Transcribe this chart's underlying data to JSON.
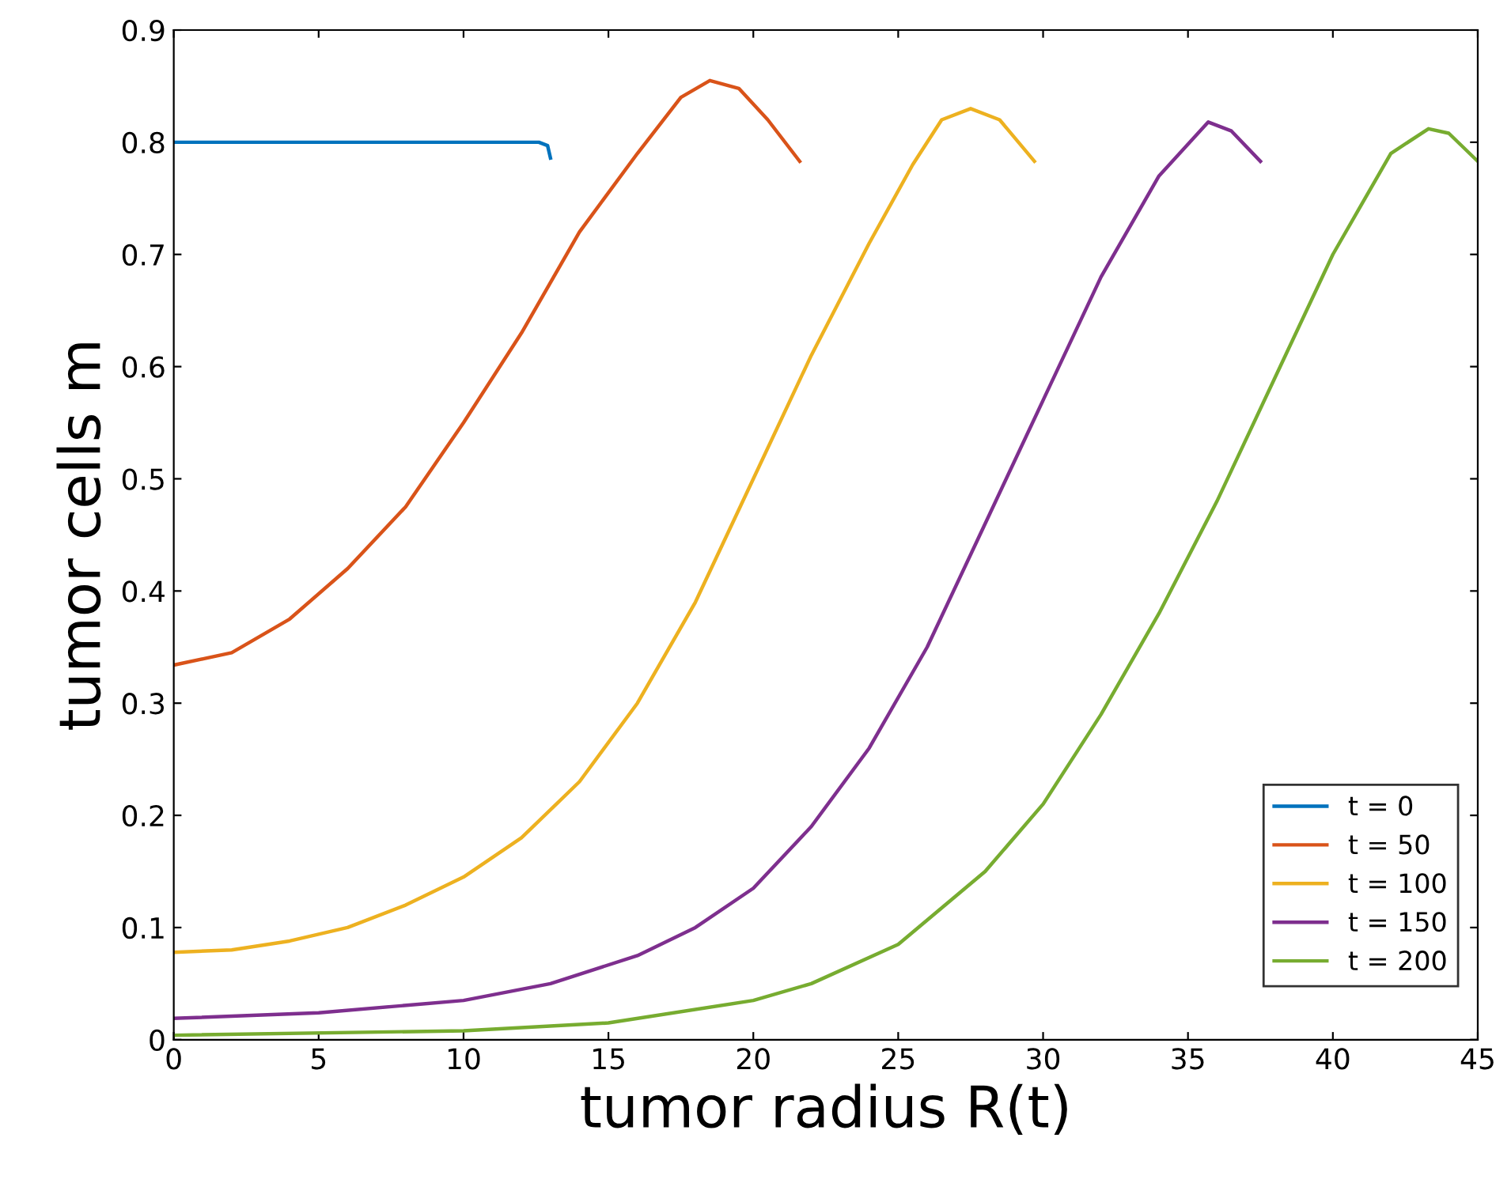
{
  "chart_data": {
    "type": "line",
    "xlabel": "tumor radius R(t)",
    "ylabel": "tumor cells m",
    "xlim": [
      0,
      45
    ],
    "ylim": [
      0,
      0.9
    ],
    "xticks": [
      0,
      5,
      10,
      15,
      20,
      25,
      30,
      35,
      40,
      45
    ],
    "yticks": [
      0,
      0.1,
      0.2,
      0.3,
      0.4,
      0.5,
      0.6,
      0.7,
      0.8,
      0.9
    ],
    "grid": false,
    "legend": "bottom right",
    "line_style": "solid",
    "marker": "none",
    "series": [
      {
        "name": "t = 0",
        "color": "#0072bd",
        "x": [
          0,
          12.6,
          12.9,
          13.0
        ],
        "values": [
          0.8,
          0.8,
          0.797,
          0.786
        ]
      },
      {
        "name": "t = 50",
        "color": "#d95319",
        "x": [
          0,
          2,
          4,
          6,
          8,
          10,
          12,
          14,
          16,
          17.5,
          18.5,
          19.5,
          20.5,
          21.6
        ],
        "values": [
          0.334,
          0.345,
          0.375,
          0.42,
          0.475,
          0.55,
          0.63,
          0.72,
          0.79,
          0.84,
          0.855,
          0.848,
          0.82,
          0.783
        ]
      },
      {
        "name": "t = 100",
        "color": "#edb120",
        "x": [
          0,
          2,
          4,
          6,
          8,
          10,
          12,
          14,
          16,
          18,
          20,
          22,
          24,
          25.5,
          26.5,
          27.5,
          28.5,
          29.7
        ],
        "values": [
          0.078,
          0.08,
          0.088,
          0.1,
          0.12,
          0.145,
          0.18,
          0.23,
          0.3,
          0.39,
          0.5,
          0.61,
          0.71,
          0.78,
          0.82,
          0.83,
          0.82,
          0.783
        ]
      },
      {
        "name": "t = 150",
        "color": "#7e2f8e",
        "x": [
          0,
          5,
          10,
          13,
          16,
          18,
          20,
          22,
          24,
          26,
          28,
          30,
          32,
          34,
          35.7,
          36.5,
          37.5
        ],
        "values": [
          0.019,
          0.024,
          0.035,
          0.05,
          0.075,
          0.1,
          0.135,
          0.19,
          0.26,
          0.35,
          0.46,
          0.57,
          0.68,
          0.77,
          0.818,
          0.81,
          0.783
        ]
      },
      {
        "name": "t = 200",
        "color": "#77ac30",
        "x": [
          0,
          10,
          15,
          20,
          22,
          25,
          28,
          30,
          32,
          34,
          36,
          38,
          40,
          42,
          43.3,
          44,
          45
        ],
        "values": [
          0.004,
          0.008,
          0.015,
          0.035,
          0.05,
          0.085,
          0.15,
          0.21,
          0.29,
          0.38,
          0.48,
          0.59,
          0.7,
          0.79,
          0.812,
          0.808,
          0.783
        ]
      }
    ]
  }
}
